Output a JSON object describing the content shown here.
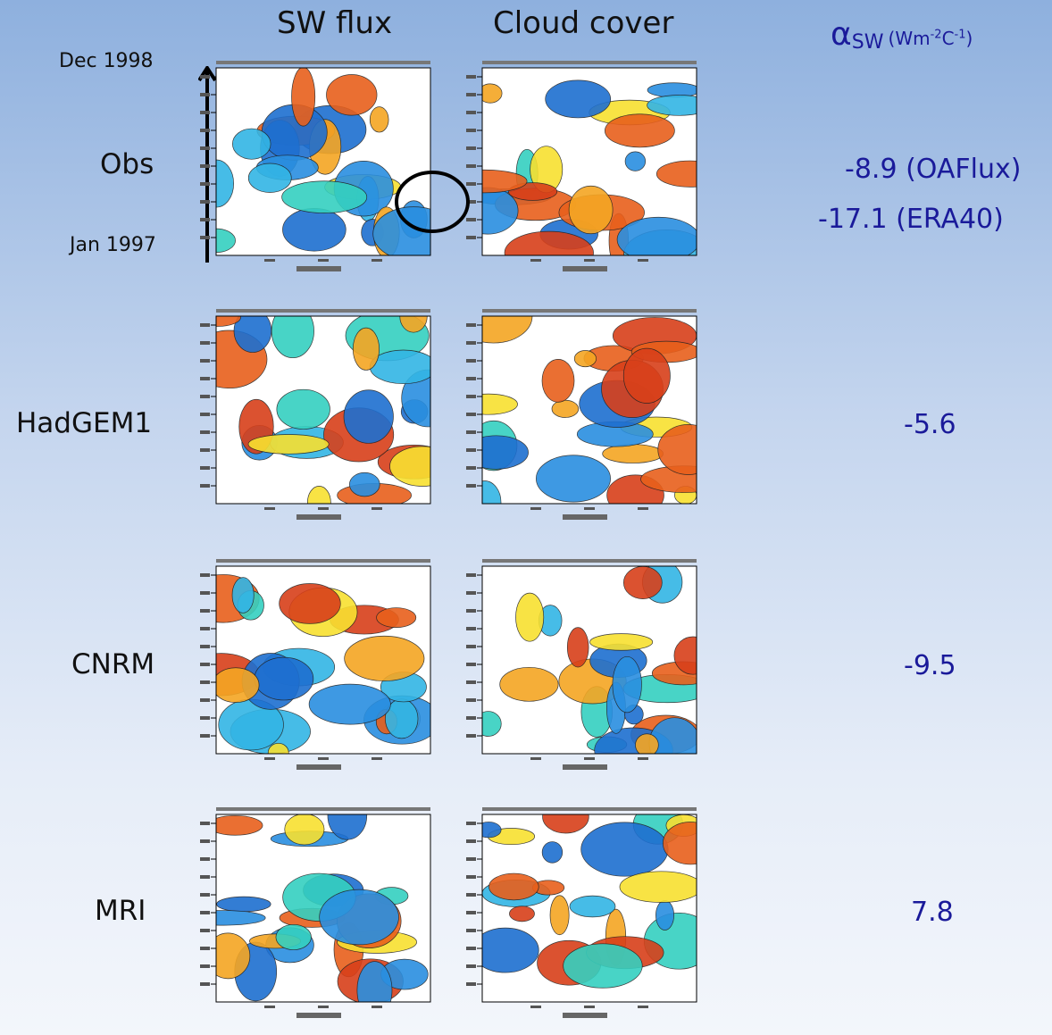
{
  "header": {
    "col1": "SW flux",
    "col2": "Cloud cover",
    "alpha": {
      "symbol": "α",
      "sub": "SW",
      "unit_open": "(Wm",
      "unit_exp1": "-2",
      "unit_mid": "C",
      "unit_exp2": "-1",
      "unit_close": ")"
    }
  },
  "time_axis": {
    "top": "Dec 1998",
    "bottom": "Jan 1997"
  },
  "rows": [
    {
      "label": "Obs",
      "values": [
        "-8.9 (OAFlux)",
        "-17.1 (ERA40)"
      ]
    },
    {
      "label": "HadGEM1",
      "values": [
        "-5.6"
      ]
    },
    {
      "label": "CNRM",
      "values": [
        "-9.5"
      ]
    },
    {
      "label": "MRI",
      "values": [
        "7.8"
      ]
    }
  ]
}
